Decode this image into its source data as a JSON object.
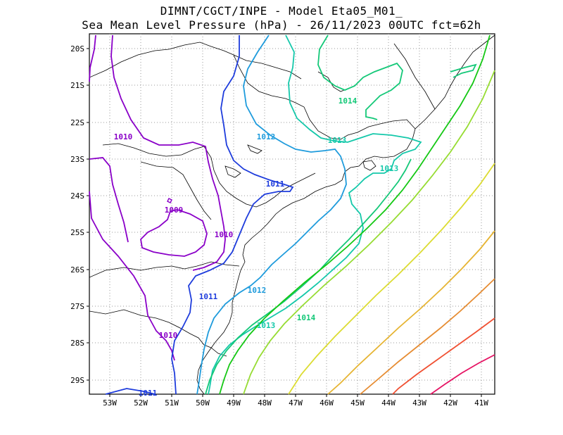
{
  "title_line1": "DIMNT/CGCT/INPE -  Model Eta05_M01_",
  "title_line2": "Sea Mean Level Pressure (hPa) - 26/11/2023 00UTC fct=62h",
  "map": {
    "lat_labels": [
      "20S",
      "21S",
      "22S",
      "23S",
      "24S",
      "25S",
      "26S",
      "27S",
      "28S",
      "29S"
    ],
    "lon_labels": [
      "53W",
      "52W",
      "51W",
      "50W",
      "49W",
      "48W",
      "47W",
      "46W",
      "45W",
      "44W",
      "43W",
      "42W",
      "41W"
    ],
    "contour_labels": [
      "1009",
      "1010",
      "1010",
      "1010",
      "1011",
      "1011",
      "1011",
      "1012",
      "1012",
      "1013",
      "1013",
      "1013",
      "1014",
      "1014"
    ],
    "colors": {
      "c1009": "#8a00c8",
      "c1010": "#8a00c8",
      "c1011": "#1e3cdc",
      "c1012": "#1e9bdc",
      "c1013": "#14c8aa",
      "c1014": "#14c878",
      "c1015": "#14c814",
      "c1016": "#96dc32",
      "c1017": "#dcdc32",
      "c1018": "#e6b432",
      "c1019": "#e68c32",
      "c1020": "#f05032",
      "c1021": "#e61464"
    }
  }
}
